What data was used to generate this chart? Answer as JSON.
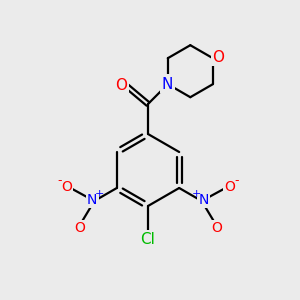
{
  "background_color": "#ebebeb",
  "bond_color": "#000000",
  "atom_colors": {
    "O": "#ff0000",
    "N": "#0000ff",
    "Cl": "#00bb00",
    "C": "#000000"
  },
  "font_size": 10,
  "lw": 1.6
}
